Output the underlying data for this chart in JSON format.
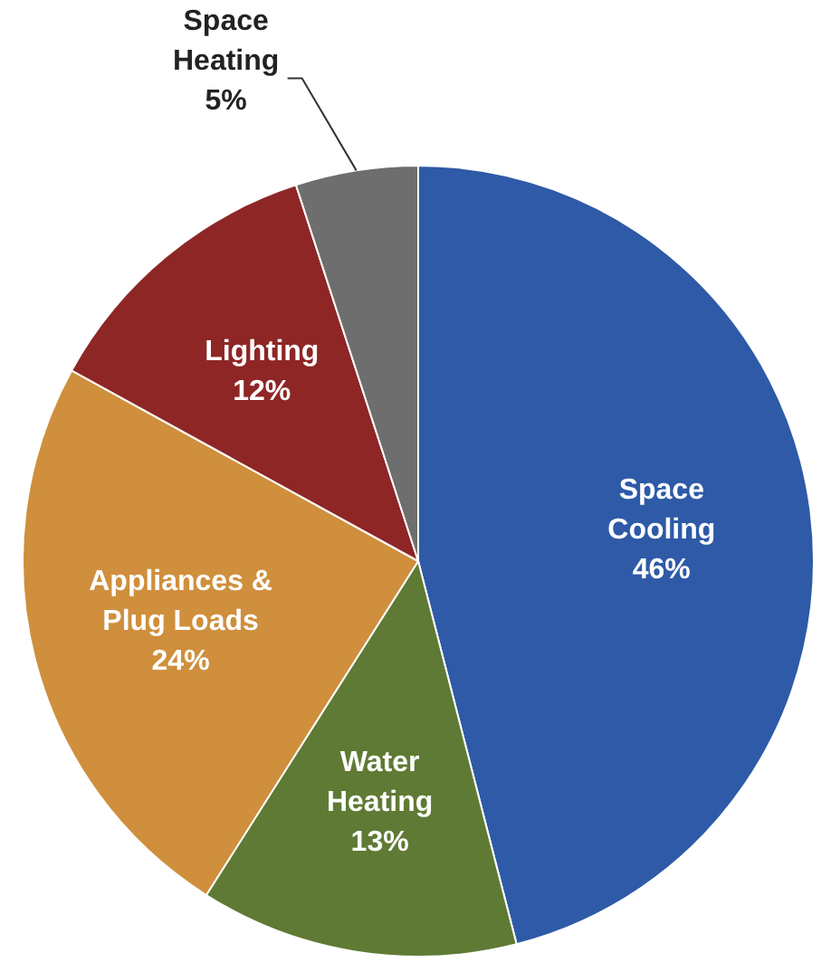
{
  "chart_data": {
    "type": "pie",
    "categories": [
      "Space Cooling",
      "Water Heating",
      "Appliances & Plug Loads",
      "Lighting",
      "Space Heating"
    ],
    "values": [
      46,
      13,
      24,
      12,
      5
    ],
    "value_labels": [
      "46%",
      "13%",
      "24%",
      "12%",
      "5%"
    ],
    "colors": [
      "#2e5aa7",
      "#5f7a34",
      "#cf8f3c",
      "#8e2626",
      "#6e6e6e"
    ]
  }
}
